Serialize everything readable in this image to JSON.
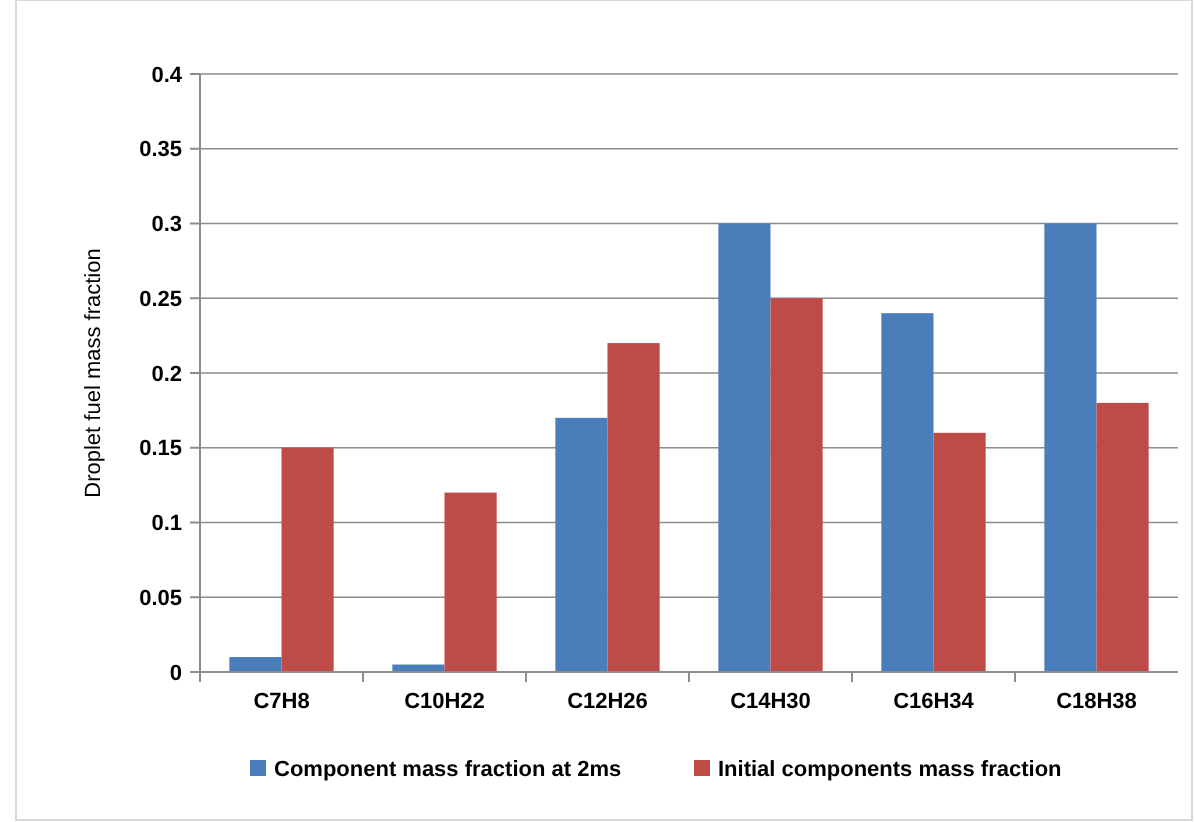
{
  "chart_data": {
    "type": "bar",
    "ylabel": "Droplet fuel mass fraction",
    "categories": [
      "C7H8",
      "C10H22",
      "C12H26",
      "C14H30",
      "C16H34",
      "C18H38"
    ],
    "series": [
      {
        "name": "Component mass fraction at 2ms",
        "color": "#4a7ebb",
        "values": [
          0.01,
          0.005,
          0.17,
          0.3,
          0.24,
          0.3
        ]
      },
      {
        "name": "Initial components mass fraction",
        "color": "#be4b48",
        "values": [
          0.15,
          0.12,
          0.22,
          0.25,
          0.16,
          0.18
        ]
      }
    ],
    "ylim": [
      0,
      0.4
    ],
    "yticks": [
      0,
      0.05,
      0.1,
      0.15,
      0.2,
      0.25,
      0.3,
      0.35,
      0.4
    ],
    "grid": "y",
    "legend": "bottom"
  }
}
